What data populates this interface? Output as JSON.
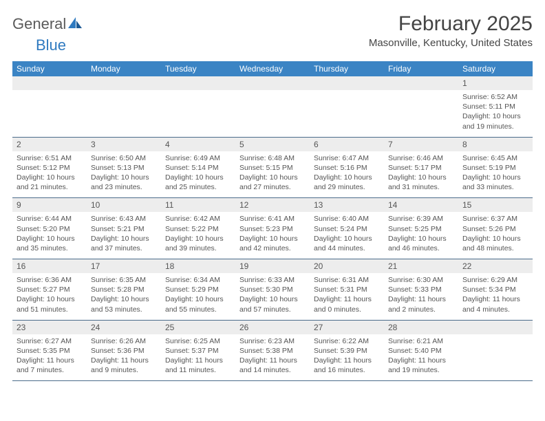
{
  "logo": {
    "part1": "General",
    "part2": "Blue"
  },
  "month_title": "February 2025",
  "location": "Masonville, Kentucky, United States",
  "day_headers": [
    "Sunday",
    "Monday",
    "Tuesday",
    "Wednesday",
    "Thursday",
    "Friday",
    "Saturday"
  ],
  "colors": {
    "header_bg": "#3b84c4",
    "header_text": "#ffffff",
    "day_num_bg": "#ededed",
    "text": "#555555",
    "accent": "#2f7ac0",
    "rule": "#4a6b8a"
  },
  "weeks": [
    {
      "days": [
        {
          "num": "",
          "lines": []
        },
        {
          "num": "",
          "lines": []
        },
        {
          "num": "",
          "lines": []
        },
        {
          "num": "",
          "lines": []
        },
        {
          "num": "",
          "lines": []
        },
        {
          "num": "",
          "lines": []
        },
        {
          "num": "1",
          "lines": [
            "Sunrise: 6:52 AM",
            "Sunset: 5:11 PM",
            "Daylight: 10 hours and 19 minutes."
          ]
        }
      ]
    },
    {
      "days": [
        {
          "num": "2",
          "lines": [
            "Sunrise: 6:51 AM",
            "Sunset: 5:12 PM",
            "Daylight: 10 hours and 21 minutes."
          ]
        },
        {
          "num": "3",
          "lines": [
            "Sunrise: 6:50 AM",
            "Sunset: 5:13 PM",
            "Daylight: 10 hours and 23 minutes."
          ]
        },
        {
          "num": "4",
          "lines": [
            "Sunrise: 6:49 AM",
            "Sunset: 5:14 PM",
            "Daylight: 10 hours and 25 minutes."
          ]
        },
        {
          "num": "5",
          "lines": [
            "Sunrise: 6:48 AM",
            "Sunset: 5:15 PM",
            "Daylight: 10 hours and 27 minutes."
          ]
        },
        {
          "num": "6",
          "lines": [
            "Sunrise: 6:47 AM",
            "Sunset: 5:16 PM",
            "Daylight: 10 hours and 29 minutes."
          ]
        },
        {
          "num": "7",
          "lines": [
            "Sunrise: 6:46 AM",
            "Sunset: 5:17 PM",
            "Daylight: 10 hours and 31 minutes."
          ]
        },
        {
          "num": "8",
          "lines": [
            "Sunrise: 6:45 AM",
            "Sunset: 5:19 PM",
            "Daylight: 10 hours and 33 minutes."
          ]
        }
      ]
    },
    {
      "days": [
        {
          "num": "9",
          "lines": [
            "Sunrise: 6:44 AM",
            "Sunset: 5:20 PM",
            "Daylight: 10 hours and 35 minutes."
          ]
        },
        {
          "num": "10",
          "lines": [
            "Sunrise: 6:43 AM",
            "Sunset: 5:21 PM",
            "Daylight: 10 hours and 37 minutes."
          ]
        },
        {
          "num": "11",
          "lines": [
            "Sunrise: 6:42 AM",
            "Sunset: 5:22 PM",
            "Daylight: 10 hours and 39 minutes."
          ]
        },
        {
          "num": "12",
          "lines": [
            "Sunrise: 6:41 AM",
            "Sunset: 5:23 PM",
            "Daylight: 10 hours and 42 minutes."
          ]
        },
        {
          "num": "13",
          "lines": [
            "Sunrise: 6:40 AM",
            "Sunset: 5:24 PM",
            "Daylight: 10 hours and 44 minutes."
          ]
        },
        {
          "num": "14",
          "lines": [
            "Sunrise: 6:39 AM",
            "Sunset: 5:25 PM",
            "Daylight: 10 hours and 46 minutes."
          ]
        },
        {
          "num": "15",
          "lines": [
            "Sunrise: 6:37 AM",
            "Sunset: 5:26 PM",
            "Daylight: 10 hours and 48 minutes."
          ]
        }
      ]
    },
    {
      "days": [
        {
          "num": "16",
          "lines": [
            "Sunrise: 6:36 AM",
            "Sunset: 5:27 PM",
            "Daylight: 10 hours and 51 minutes."
          ]
        },
        {
          "num": "17",
          "lines": [
            "Sunrise: 6:35 AM",
            "Sunset: 5:28 PM",
            "Daylight: 10 hours and 53 minutes."
          ]
        },
        {
          "num": "18",
          "lines": [
            "Sunrise: 6:34 AM",
            "Sunset: 5:29 PM",
            "Daylight: 10 hours and 55 minutes."
          ]
        },
        {
          "num": "19",
          "lines": [
            "Sunrise: 6:33 AM",
            "Sunset: 5:30 PM",
            "Daylight: 10 hours and 57 minutes."
          ]
        },
        {
          "num": "20",
          "lines": [
            "Sunrise: 6:31 AM",
            "Sunset: 5:31 PM",
            "Daylight: 11 hours and 0 minutes."
          ]
        },
        {
          "num": "21",
          "lines": [
            "Sunrise: 6:30 AM",
            "Sunset: 5:33 PM",
            "Daylight: 11 hours and 2 minutes."
          ]
        },
        {
          "num": "22",
          "lines": [
            "Sunrise: 6:29 AM",
            "Sunset: 5:34 PM",
            "Daylight: 11 hours and 4 minutes."
          ]
        }
      ]
    },
    {
      "days": [
        {
          "num": "23",
          "lines": [
            "Sunrise: 6:27 AM",
            "Sunset: 5:35 PM",
            "Daylight: 11 hours and 7 minutes."
          ]
        },
        {
          "num": "24",
          "lines": [
            "Sunrise: 6:26 AM",
            "Sunset: 5:36 PM",
            "Daylight: 11 hours and 9 minutes."
          ]
        },
        {
          "num": "25",
          "lines": [
            "Sunrise: 6:25 AM",
            "Sunset: 5:37 PM",
            "Daylight: 11 hours and 11 minutes."
          ]
        },
        {
          "num": "26",
          "lines": [
            "Sunrise: 6:23 AM",
            "Sunset: 5:38 PM",
            "Daylight: 11 hours and 14 minutes."
          ]
        },
        {
          "num": "27",
          "lines": [
            "Sunrise: 6:22 AM",
            "Sunset: 5:39 PM",
            "Daylight: 11 hours and 16 minutes."
          ]
        },
        {
          "num": "28",
          "lines": [
            "Sunrise: 6:21 AM",
            "Sunset: 5:40 PM",
            "Daylight: 11 hours and 19 minutes."
          ]
        },
        {
          "num": "",
          "lines": []
        }
      ]
    }
  ]
}
